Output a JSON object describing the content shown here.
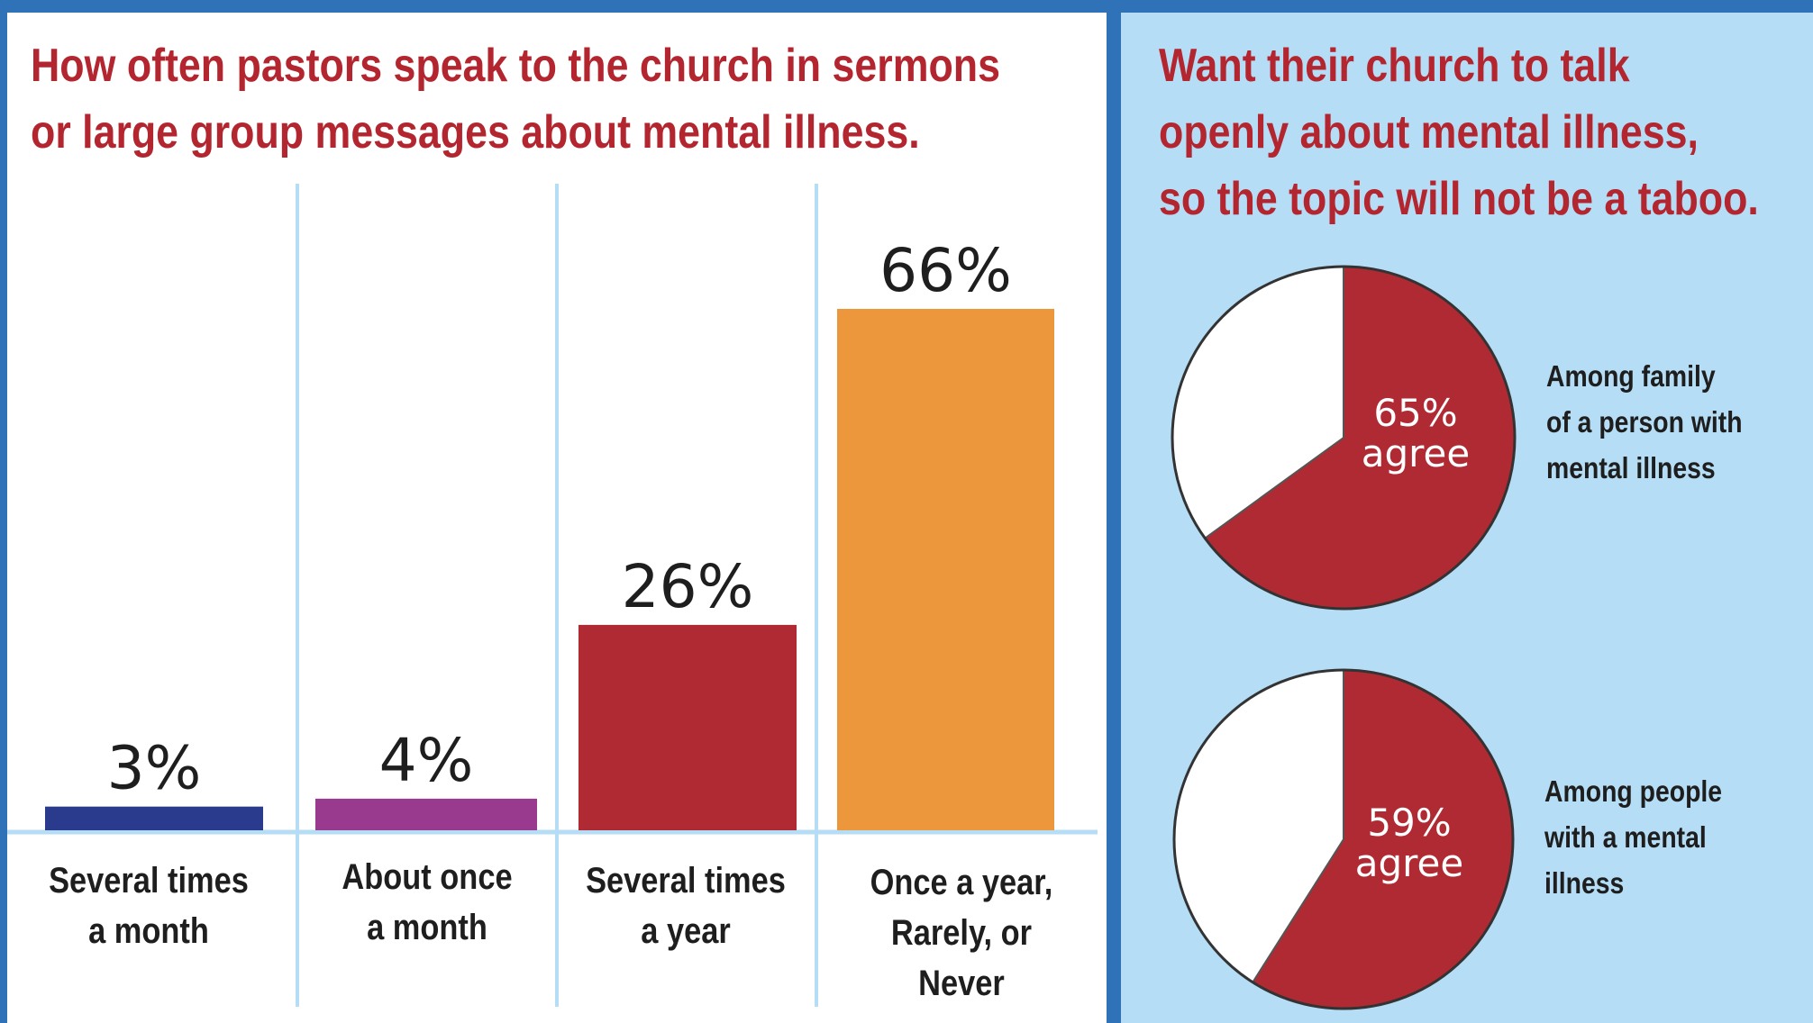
{
  "chart_data": [
    {
      "type": "bar",
      "title": "How often pastors speak to the church in sermons or large group messages about mental illness.",
      "title_lines": [
        "How often pastors speak to the church in sermons",
        "or large group messages about mental illness."
      ],
      "categories": [
        "Several times a month",
        "About once a month",
        "Several times a year",
        "Once a year, Rarely, or Never"
      ],
      "category_lines": [
        [
          "Several times",
          "a month"
        ],
        [
          "About once",
          "a month"
        ],
        [
          "Several times",
          "a year"
        ],
        [
          "Once a year,",
          "Rarely, or",
          "Never"
        ]
      ],
      "values": [
        3,
        4,
        26,
        66
      ],
      "data_labels": [
        "3%",
        "4%",
        "26%",
        "66%"
      ],
      "colors": [
        "#2a3a8c",
        "#9a3a8e",
        "#b02a33",
        "#ec973c"
      ],
      "ylim": [
        0,
        66
      ],
      "grid": false,
      "legend": "none"
    },
    {
      "type": "pie",
      "title": "Want their church to talk openly about mental illness, so the topic will not be a taboo.",
      "title_lines": [
        "Want their church to talk",
        "openly about mental illness,",
        "so the topic will not be a taboo."
      ],
      "pies": [
        {
          "value": 65,
          "label_pct": "65%",
          "label_word": "agree",
          "caption_lines": [
            "Among family",
            "of a person with",
            "mental illness"
          ]
        },
        {
          "value": 59,
          "label_pct": "59%",
          "label_word": "agree",
          "caption_lines": [
            "Among people",
            "with a mental",
            "illness"
          ]
        }
      ],
      "colors": {
        "agree": "#b02a33",
        "rest": "#ffffff"
      }
    }
  ],
  "colors": {
    "frame": "#2f72b8",
    "left_panel": "#ffffff",
    "right_panel": "#b5ddf5",
    "divider": "#b5ddf5",
    "title": "#b3262f",
    "text": "#1e1e1e"
  }
}
